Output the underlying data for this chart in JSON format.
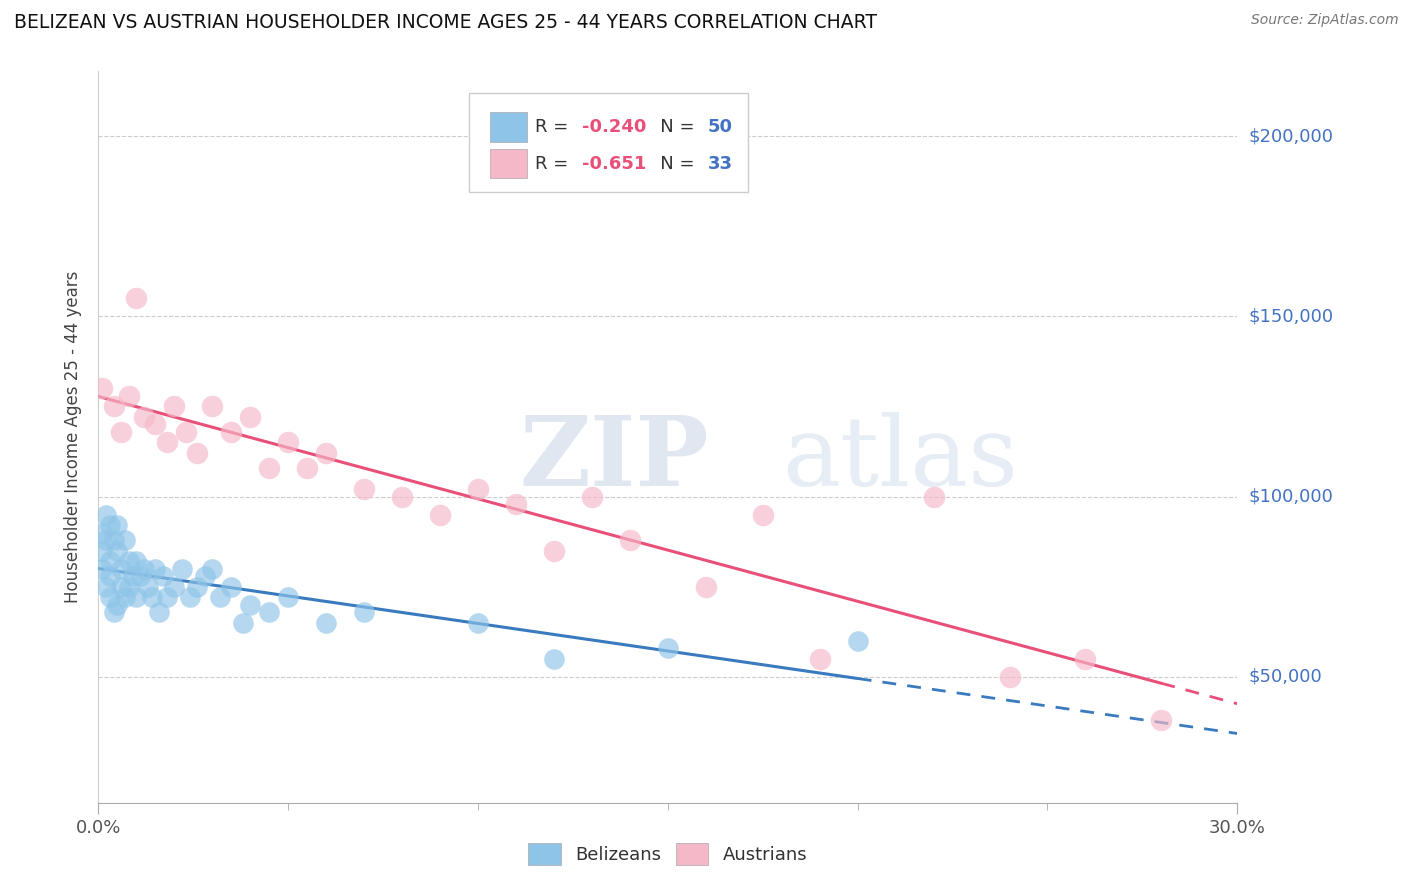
{
  "title": "BELIZEAN VS AUSTRIAN HOUSEHOLDER INCOME AGES 25 - 44 YEARS CORRELATION CHART",
  "source": "Source: ZipAtlas.com",
  "ylabel": "Householder Income Ages 25 - 44 years",
  "ytick_labels": [
    "$50,000",
    "$100,000",
    "$150,000",
    "$200,000"
  ],
  "ytick_vals": [
    50000,
    100000,
    150000,
    200000
  ],
  "xmin": 0.0,
  "xmax": 0.3,
  "ymin": 15000,
  "ymax": 218000,
  "belizean_R": -0.24,
  "belizean_N": 50,
  "austrian_R": -0.651,
  "austrian_N": 33,
  "belizean_color": "#8ec4e8",
  "austrian_color": "#f5b8c8",
  "belizean_line_color": "#3a7abf",
  "austrian_line_color": "#e8507a",
  "belizean_x": [
    0.001,
    0.001,
    0.001,
    0.002,
    0.002,
    0.002,
    0.003,
    0.003,
    0.003,
    0.003,
    0.004,
    0.004,
    0.005,
    0.005,
    0.005,
    0.006,
    0.006,
    0.007,
    0.007,
    0.008,
    0.008,
    0.009,
    0.01,
    0.01,
    0.011,
    0.012,
    0.013,
    0.014,
    0.015,
    0.016,
    0.017,
    0.018,
    0.02,
    0.022,
    0.024,
    0.026,
    0.028,
    0.03,
    0.032,
    0.035,
    0.038,
    0.04,
    0.045,
    0.05,
    0.06,
    0.07,
    0.1,
    0.12,
    0.15,
    0.2
  ],
  "belizean_y": [
    90000,
    85000,
    80000,
    95000,
    88000,
    75000,
    92000,
    82000,
    78000,
    72000,
    88000,
    68000,
    92000,
    85000,
    70000,
    80000,
    75000,
    88000,
    72000,
    82000,
    75000,
    78000,
    82000,
    72000,
    78000,
    80000,
    75000,
    72000,
    80000,
    68000,
    78000,
    72000,
    75000,
    80000,
    72000,
    75000,
    78000,
    80000,
    72000,
    75000,
    65000,
    70000,
    68000,
    72000,
    65000,
    68000,
    65000,
    55000,
    58000,
    60000
  ],
  "austrian_x": [
    0.001,
    0.004,
    0.006,
    0.008,
    0.01,
    0.012,
    0.015,
    0.018,
    0.02,
    0.023,
    0.026,
    0.03,
    0.035,
    0.04,
    0.045,
    0.05,
    0.055,
    0.06,
    0.07,
    0.08,
    0.09,
    0.1,
    0.11,
    0.12,
    0.13,
    0.14,
    0.16,
    0.175,
    0.19,
    0.22,
    0.24,
    0.26,
    0.28
  ],
  "austrian_y": [
    130000,
    125000,
    118000,
    128000,
    155000,
    122000,
    120000,
    115000,
    125000,
    118000,
    112000,
    125000,
    118000,
    122000,
    108000,
    115000,
    108000,
    112000,
    102000,
    100000,
    95000,
    102000,
    98000,
    85000,
    100000,
    88000,
    75000,
    95000,
    55000,
    100000,
    50000,
    55000,
    38000
  ]
}
